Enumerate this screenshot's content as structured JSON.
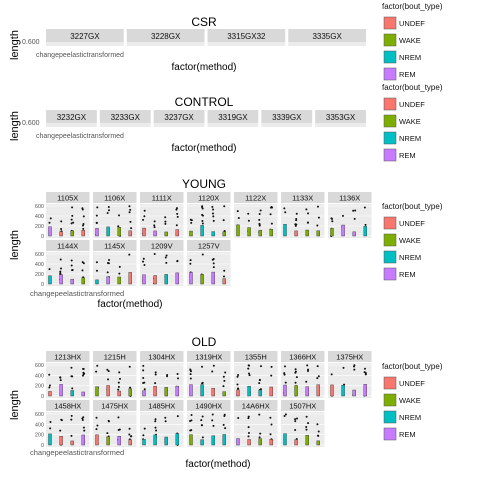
{
  "legend_title": "factor(bout_type)",
  "legend_entries": [
    {
      "label": "UNDEF",
      "color": "#F8766D"
    },
    {
      "label": "WAKE",
      "color": "#7CAE00"
    },
    {
      "label": "NREM",
      "color": "#00BFC4"
    },
    {
      "label": "REM",
      "color": "#C77CFF"
    }
  ],
  "chart_data": [
    {
      "type": "boxplot",
      "title": "CSR",
      "xlabel": "factor(method)",
      "ylabel": "length",
      "tick_label_y": "0.600",
      "panels": [
        "3227GX",
        "3228GX",
        "3315GX32",
        "3335GX"
      ],
      "x_ticks": [
        "change",
        "pe",
        "elastic",
        "transform"
      ],
      "x_tick_text": "changepeelastictransformed",
      "series": []
    },
    {
      "type": "boxplot",
      "title": "CONTROL",
      "xlabel": "factor(method)",
      "ylabel": "length",
      "tick_label_y": "0.600",
      "panels": [
        "3232GX",
        "3233GX",
        "3237GX",
        "3319GX",
        "3339GX",
        "3353GX"
      ],
      "x_ticks": [
        "change",
        "pe",
        "elastic",
        "transform"
      ],
      "series": []
    },
    {
      "type": "boxplot",
      "title": "YOUNG",
      "xlabel": "factor(method)",
      "ylabel": "length",
      "y_ticks": [
        "600",
        "400",
        "200",
        "0"
      ],
      "panels": [
        "1105X",
        "1106X",
        "1111X",
        "1120X",
        "1122X",
        "1133X",
        "1136X",
        "1144X",
        "1145X",
        "1209V",
        "1257V"
      ],
      "x_tick_text": "changepeelastictransformed",
      "series": [
        "UNDEF",
        "WAKE",
        "NREM",
        "REM"
      ]
    },
    {
      "type": "boxplot",
      "title": "OLD",
      "xlabel": "factor(method)",
      "ylabel": "length",
      "y_ticks": [
        "600",
        "400",
        "200",
        "0"
      ],
      "panels": [
        "1213HX",
        "1215H",
        "1304HX",
        "1319HX",
        "1355H",
        "1366HX",
        "1375HX",
        "1458HX",
        "1475HX",
        "1485HX",
        "1490HX",
        "14A6HX",
        "1507HX"
      ],
      "x_tick_text": "changepeelastictransformed",
      "series": [
        "UNDEF",
        "WAKE",
        "NREM",
        "REM"
      ]
    }
  ]
}
